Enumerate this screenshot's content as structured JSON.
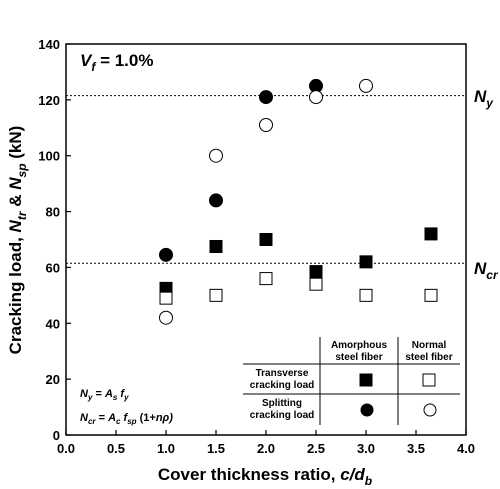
{
  "chart_data": {
    "type": "scatter",
    "xlabel": {
      "main": "Cover thickness ratio, ",
      "var": "c/d",
      "sub": "b"
    },
    "ylabel": {
      "p1": "Cracking load, ",
      "v1": "N",
      "s1": "tr",
      "p2": " & ",
      "v2": "N",
      "s2": "sp",
      "p3": " (kN)"
    },
    "xlim": [
      0.0,
      4.0
    ],
    "ylim": [
      0,
      140
    ],
    "xticks": [
      "0.0",
      "0.5",
      "1.0",
      "1.5",
      "2.0",
      "2.5",
      "3.0",
      "3.5",
      "4.0"
    ],
    "yticks": [
      "0",
      "20",
      "40",
      "60",
      "80",
      "100",
      "120",
      "140"
    ],
    "grid": false,
    "series": [
      {
        "key": "am_transverse",
        "marker": "filled-square",
        "points": [
          [
            1.0,
            52.5
          ],
          [
            1.5,
            67.5
          ],
          [
            2.0,
            70
          ],
          [
            2.5,
            58.5
          ],
          [
            3.0,
            62
          ],
          [
            3.65,
            72
          ]
        ]
      },
      {
        "key": "nsf_transverse",
        "marker": "open-square",
        "points": [
          [
            1.0,
            49
          ],
          [
            1.5,
            50
          ],
          [
            2.0,
            56
          ],
          [
            2.5,
            54
          ],
          [
            3.0,
            50
          ],
          [
            3.65,
            50
          ]
        ]
      },
      {
        "key": "am_splitting",
        "marker": "filled-circle",
        "points": [
          [
            1.0,
            64.5
          ],
          [
            1.5,
            84
          ],
          [
            2.0,
            121
          ],
          [
            2.5,
            125
          ]
        ]
      },
      {
        "key": "nsf_splitting",
        "marker": "open-circle",
        "points": [
          [
            1.0,
            42
          ],
          [
            1.5,
            100
          ],
          [
            2.0,
            111
          ],
          [
            2.5,
            121
          ],
          [
            3.0,
            125
          ]
        ]
      }
    ],
    "reference_lines": [
      {
        "value": 121.5,
        "style": "dotted",
        "label_var": "N",
        "label_sub": "y"
      },
      {
        "value": 61.5,
        "style": "dotted",
        "label_var": "N",
        "label_sub": "cr"
      }
    ],
    "annotations": {
      "vf": {
        "var": "V",
        "sub": "f",
        "text": " = 1.0%"
      },
      "eq1": {
        "a": "N",
        "as": "y",
        "b": " = ",
        "c": "A",
        "cs": "s",
        "d": " ",
        "e": "f",
        "es": "y"
      },
      "eq2": {
        "a": "N",
        "as": "cr",
        "b": " = ",
        "c": "A",
        "cs": "c",
        "d": " ",
        "e": "f",
        "es": "sp",
        "f": " (1+",
        "g": "n",
        "h": "ρ)"
      }
    },
    "legend": {
      "position": "bottom-right",
      "col1": [
        "Amorphous",
        "steel fiber"
      ],
      "col2": [
        "Normal",
        "steel fiber"
      ],
      "row1": [
        "Transverse",
        "cracking load"
      ],
      "row2": [
        "Splitting",
        "cracking load"
      ]
    }
  }
}
